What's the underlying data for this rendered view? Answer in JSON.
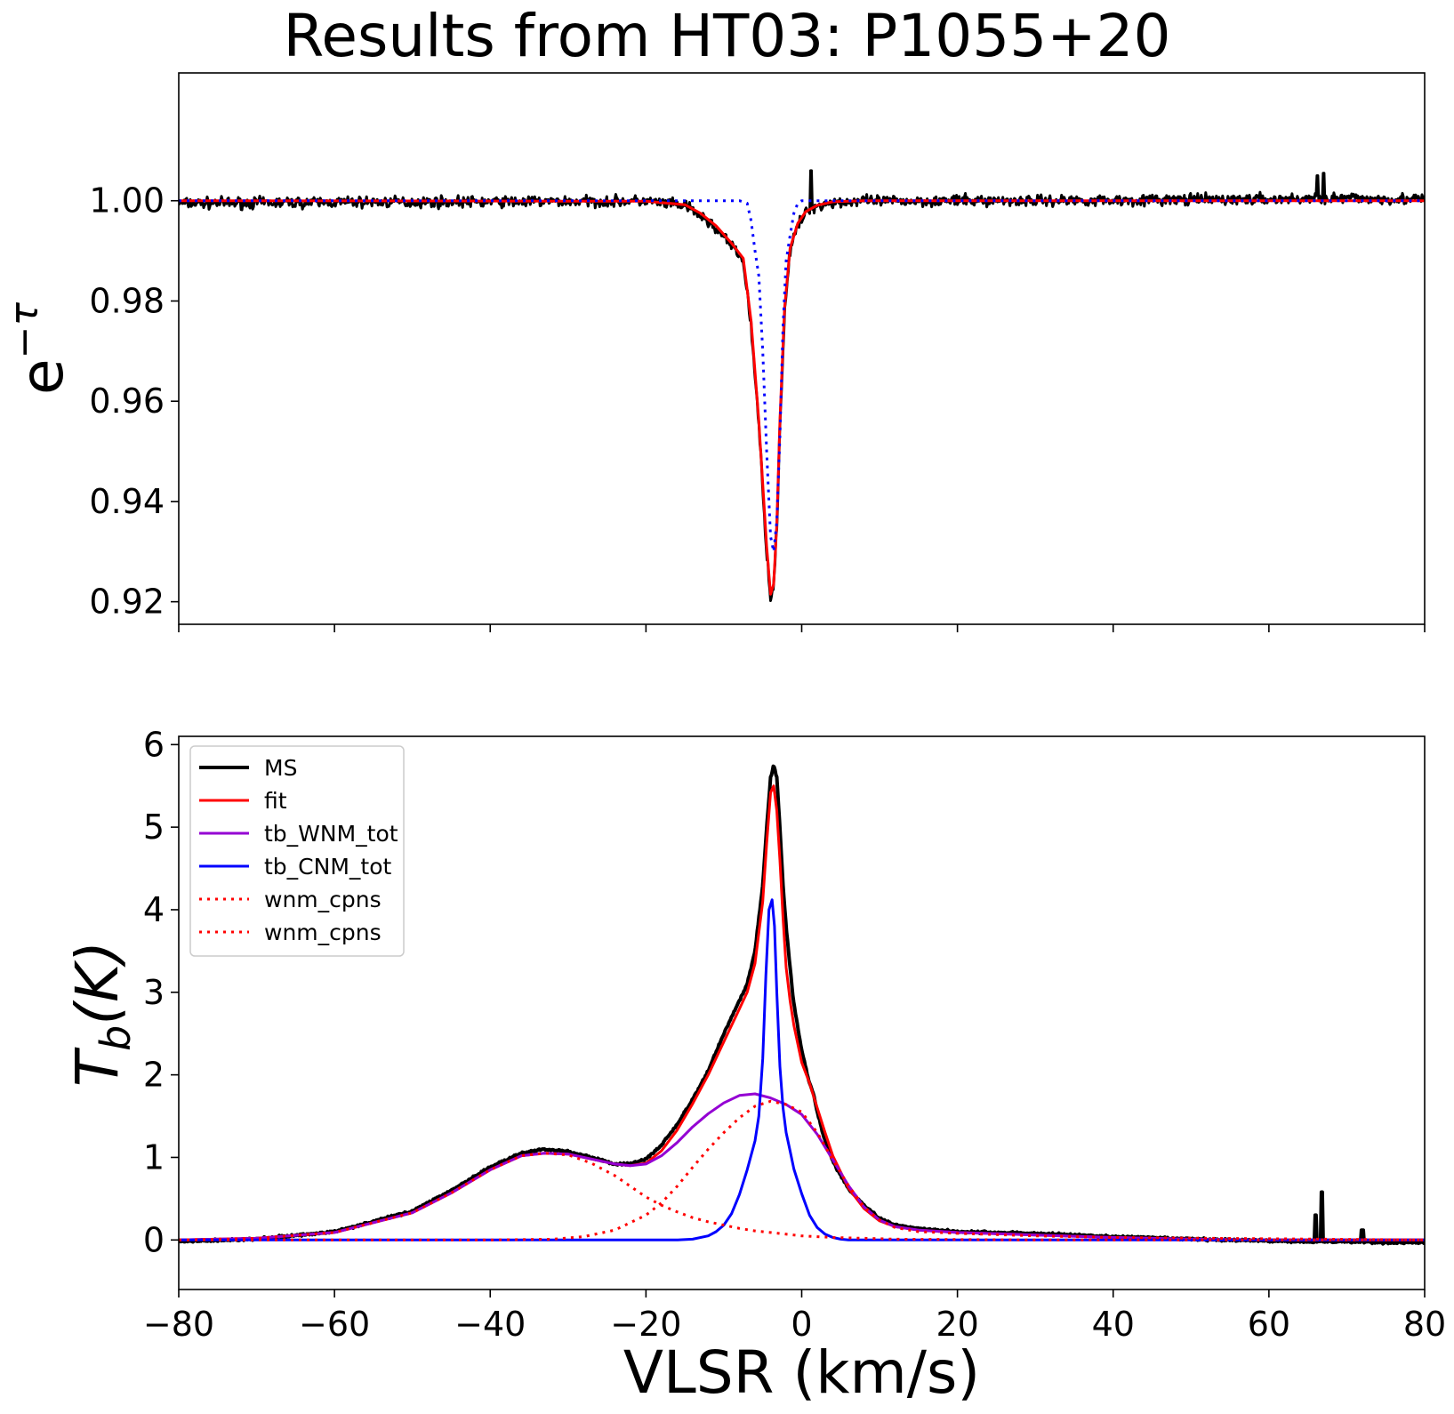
{
  "title": "Results from HT03: P1055+20",
  "chart_data": [
    {
      "id": "absorption",
      "type": "line",
      "title": "Results from HT03: P1055+20",
      "xlabel": "",
      "ylabel": "e",
      "ylabel_sup": "−τ",
      "xlim": [
        -80,
        80
      ],
      "ylim": [
        0.9155,
        1.0255
      ],
      "xticks": [
        -80,
        -60,
        -40,
        -20,
        0,
        20,
        40,
        60,
        80
      ],
      "yticks": [
        0.92,
        0.94,
        0.96,
        0.98,
        1.0
      ],
      "ytick_labels": [
        "0.92",
        "0.94",
        "0.96",
        "0.98",
        "1.00"
      ],
      "grid": false,
      "series": [
        {
          "role": "data",
          "color": "#000000",
          "style": "solid",
          "linewidth": 3,
          "noise": 0.0012,
          "spikes": [
            [
              1.2,
              1.006
            ],
            [
              67.0,
              1.0055
            ],
            [
              66.2,
              1.005
            ]
          ],
          "x": [
            -80,
            -60,
            -40,
            -20,
            -15,
            -13,
            -11,
            -9,
            -7.5,
            -6.5,
            -5.5,
            -4.5,
            -4.0,
            -3.6,
            -3.2,
            -2.8,
            -2.2,
            -1.5,
            -0.5,
            0.5,
            2,
            4,
            8,
            20,
            40,
            60,
            70,
            80
          ],
          "values": [
            0.9995,
            0.9997,
            0.9998,
            0.9999,
            0.999,
            0.997,
            0.9945,
            0.991,
            0.988,
            0.975,
            0.955,
            0.93,
            0.921,
            0.923,
            0.935,
            0.955,
            0.978,
            0.99,
            0.995,
            0.9975,
            0.999,
            0.9997,
            0.9999,
            1.0,
            1.0001,
            1.0003,
            1.0005,
            1.0003
          ]
        },
        {
          "role": "fit",
          "color": "#ff0000",
          "style": "solid",
          "linewidth": 3,
          "x": [
            -80,
            -20,
            -15,
            -13,
            -11,
            -9,
            -7.5,
            -6.5,
            -5.5,
            -4.5,
            -4.0,
            -3.6,
            -3.2,
            -2.8,
            -2.2,
            -1.5,
            -0.5,
            0.5,
            2,
            4,
            8,
            80
          ],
          "values": [
            1.0,
            0.9999,
            0.9992,
            0.9975,
            0.995,
            0.9915,
            0.9885,
            0.976,
            0.956,
            0.931,
            0.9215,
            0.9235,
            0.9355,
            0.956,
            0.9785,
            0.9905,
            0.9955,
            0.9978,
            0.9991,
            0.9998,
            1.0,
            1.0
          ]
        },
        {
          "role": "cnm",
          "color": "#0000ff",
          "style": "dotted",
          "linewidth": 3,
          "x": [
            -80,
            -8,
            -7,
            -6.5,
            -6,
            -5.5,
            -5,
            -4.5,
            -4.0,
            -3.6,
            -3.2,
            -2.8,
            -2.4,
            -2.0,
            -1.5,
            -1.0,
            -0.5,
            0,
            1,
            80
          ],
          "values": [
            1.0,
            1.0,
            0.9995,
            0.996,
            0.99,
            0.985,
            0.97,
            0.95,
            0.933,
            0.93,
            0.936,
            0.953,
            0.975,
            0.988,
            0.993,
            0.9975,
            0.9995,
            1.0,
            1.0,
            1.0
          ]
        }
      ]
    },
    {
      "id": "emission",
      "type": "line",
      "xlabel": "VLSR (km/s)",
      "ylabel": "T",
      "ylabel_sub": "b",
      "ylabel_rest": "(K)",
      "xlim": [
        -80,
        80
      ],
      "ylim": [
        -0.6,
        6.1
      ],
      "xticks": [
        -80,
        -60,
        -40,
        -20,
        0,
        20,
        40,
        60,
        80
      ],
      "xtick_labels": [
        "−80",
        "−60",
        "−40",
        "−20",
        "0",
        "20",
        "40",
        "60",
        "80"
      ],
      "yticks": [
        0,
        1,
        2,
        3,
        4,
        5,
        6
      ],
      "ytick_labels": [
        "0",
        "1",
        "2",
        "3",
        "4",
        "5",
        "6"
      ],
      "grid": false,
      "legend": {
        "loc": "upper-left",
        "entries": [
          {
            "label": "MS",
            "color": "#000000",
            "style": "solid",
            "linewidth": 4
          },
          {
            "label": "fit",
            "color": "#ff0000",
            "style": "solid",
            "linewidth": 3
          },
          {
            "label": "tb_WNM_tot",
            "color": "#9400d3",
            "style": "solid",
            "linewidth": 3
          },
          {
            "label": "tb_CNM_tot",
            "color": "#0000ff",
            "style": "solid",
            "linewidth": 3
          },
          {
            "label": "wnm_cpns",
            "color": "#ff0000",
            "style": "dotted",
            "linewidth": 3
          },
          {
            "label": "wnm_cpns",
            "color": "#ff0000",
            "style": "dotted",
            "linewidth": 3
          }
        ]
      },
      "series": [
        {
          "name": "MS",
          "color": "#000000",
          "style": "solid",
          "linewidth": 4,
          "noise": 0.015,
          "spikes": [
            [
              66.8,
              0.58
            ],
            [
              66.0,
              0.3
            ],
            [
              72.0,
              0.12
            ]
          ],
          "x": [
            -80,
            -70,
            -60,
            -50,
            -45,
            -40,
            -36,
            -33,
            -30,
            -27,
            -24,
            -22,
            -20,
            -18,
            -16,
            -14,
            -12,
            -10,
            -8,
            -7,
            -6,
            -5,
            -4.5,
            -4,
            -3.6,
            -3.2,
            -2.8,
            -2.4,
            -2,
            -1.5,
            -1,
            0,
            1,
            1.5,
            2,
            3,
            4,
            6,
            8,
            10,
            12,
            15,
            20,
            30,
            40,
            50,
            60,
            65,
            70,
            75,
            80
          ],
          "values": [
            -0.02,
            0.01,
            0.1,
            0.35,
            0.6,
            0.88,
            1.05,
            1.1,
            1.07,
            1.0,
            0.92,
            0.92,
            0.98,
            1.15,
            1.4,
            1.7,
            2.05,
            2.5,
            2.9,
            3.1,
            3.5,
            4.3,
            5.0,
            5.6,
            5.75,
            5.6,
            5.0,
            4.3,
            3.8,
            3.3,
            2.85,
            2.3,
            1.9,
            1.78,
            1.55,
            1.2,
            0.95,
            0.62,
            0.42,
            0.26,
            0.18,
            0.14,
            0.1,
            0.08,
            0.04,
            0.01,
            -0.01,
            -0.02,
            -0.02,
            -0.03,
            -0.03
          ]
        },
        {
          "name": "fit",
          "color": "#ff0000",
          "style": "solid",
          "linewidth": 3,
          "x": [
            -80,
            -70,
            -60,
            -50,
            -45,
            -40,
            -36,
            -33,
            -30,
            -27,
            -24,
            -22,
            -20,
            -18,
            -16,
            -14,
            -12,
            -10,
            -8,
            -7,
            -6,
            -5,
            -4.5,
            -4,
            -3.6,
            -3.2,
            -2.8,
            -2.4,
            -2,
            -1.5,
            -1,
            0,
            1,
            2,
            3,
            4,
            6,
            8,
            10,
            12,
            15,
            20,
            30,
            40,
            50,
            60,
            70,
            80
          ],
          "values": [
            0.0,
            0.02,
            0.09,
            0.33,
            0.57,
            0.85,
            1.02,
            1.05,
            1.04,
            0.98,
            0.92,
            0.9,
            0.93,
            1.08,
            1.33,
            1.65,
            2.0,
            2.4,
            2.8,
            3.0,
            3.35,
            4.1,
            4.8,
            5.42,
            5.5,
            5.2,
            4.6,
            3.9,
            3.3,
            2.9,
            2.6,
            2.15,
            1.9,
            1.6,
            1.3,
            1.02,
            0.63,
            0.38,
            0.23,
            0.16,
            0.12,
            0.09,
            0.06,
            0.03,
            0.01,
            0.0,
            0.0,
            0.0
          ]
        },
        {
          "name": "tb_WNM_tot",
          "color": "#9400d3",
          "style": "solid",
          "linewidth": 3,
          "x": [
            -80,
            -70,
            -60,
            -50,
            -45,
            -40,
            -36,
            -33,
            -30,
            -27,
            -24,
            -22,
            -20,
            -18,
            -16,
            -14,
            -12,
            -10,
            -8,
            -6,
            -4,
            -2,
            0,
            2,
            4,
            6,
            8,
            10,
            12,
            15,
            20,
            30,
            40,
            50,
            60,
            70,
            80
          ],
          "values": [
            0.0,
            0.02,
            0.09,
            0.33,
            0.57,
            0.85,
            1.02,
            1.05,
            1.04,
            0.98,
            0.92,
            0.9,
            0.92,
            1.02,
            1.18,
            1.37,
            1.53,
            1.66,
            1.75,
            1.77,
            1.72,
            1.64,
            1.52,
            1.28,
            0.97,
            0.66,
            0.4,
            0.24,
            0.16,
            0.12,
            0.09,
            0.06,
            0.03,
            0.01,
            0.0,
            0.0,
            0.0
          ]
        },
        {
          "name": "tb_CNM_tot",
          "color": "#0000ff",
          "style": "solid",
          "linewidth": 3,
          "x": [
            -80,
            -20,
            -16,
            -14,
            -12,
            -11,
            -10,
            -9,
            -8,
            -7,
            -6,
            -5.5,
            -5,
            -4.6,
            -4.2,
            -3.8,
            -3.5,
            -3.2,
            -2.8,
            -2.4,
            -2,
            -1.5,
            -1,
            0,
            1,
            2,
            3,
            4,
            5,
            6,
            80
          ],
          "values": [
            0.0,
            0.0,
            0.0,
            0.01,
            0.05,
            0.1,
            0.18,
            0.32,
            0.55,
            0.85,
            1.2,
            1.5,
            2.2,
            3.2,
            4.0,
            4.12,
            3.8,
            3.0,
            2.1,
            1.6,
            1.3,
            1.08,
            0.86,
            0.56,
            0.3,
            0.15,
            0.07,
            0.03,
            0.01,
            0.0,
            0.0
          ]
        },
        {
          "name": "wnm_cpns",
          "color": "#ff0000",
          "style": "dotted",
          "linewidth": 3,
          "x": [
            -80,
            -70,
            -60,
            -50,
            -45,
            -40,
            -36,
            -33,
            -30,
            -27,
            -24,
            -22,
            -20,
            -18,
            -16,
            -14,
            -12,
            -10,
            -8,
            -6,
            -4,
            -2,
            0,
            2,
            4,
            8,
            12,
            20,
            30,
            40,
            80
          ],
          "values": [
            0.0,
            0.02,
            0.09,
            0.33,
            0.57,
            0.85,
            1.02,
            1.05,
            1.03,
            0.93,
            0.78,
            0.65,
            0.52,
            0.42,
            0.34,
            0.27,
            0.22,
            0.18,
            0.14,
            0.11,
            0.09,
            0.07,
            0.05,
            0.04,
            0.03,
            0.02,
            0.01,
            0.005,
            0.0,
            0.0,
            0.0
          ]
        },
        {
          "name": "wnm_cpns",
          "color": "#ff0000",
          "style": "dotted",
          "linewidth": 3,
          "x": [
            -80,
            -40,
            -32,
            -28,
            -24,
            -20,
            -18,
            -16,
            -14,
            -12,
            -10,
            -8,
            -6,
            -4,
            -2,
            0,
            2,
            4,
            6,
            8,
            10,
            12,
            15,
            20,
            30,
            40,
            80
          ],
          "values": [
            0.0,
            0.0,
            0.01,
            0.04,
            0.12,
            0.3,
            0.45,
            0.65,
            0.88,
            1.1,
            1.3,
            1.48,
            1.62,
            1.68,
            1.64,
            1.55,
            1.3,
            0.97,
            0.66,
            0.4,
            0.24,
            0.15,
            0.1,
            0.08,
            0.05,
            0.03,
            0.0
          ]
        }
      ]
    }
  ]
}
